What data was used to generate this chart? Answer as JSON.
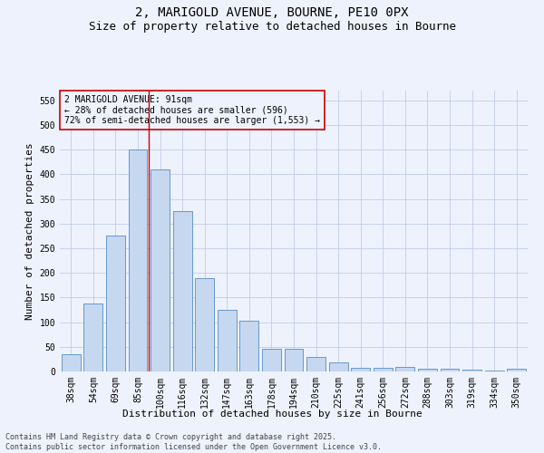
{
  "title_line1": "2, MARIGOLD AVENUE, BOURNE, PE10 0PX",
  "title_line2": "Size of property relative to detached houses in Bourne",
  "xlabel": "Distribution of detached houses by size in Bourne",
  "ylabel": "Number of detached properties",
  "categories": [
    "38sqm",
    "54sqm",
    "69sqm",
    "85sqm",
    "100sqm",
    "116sqm",
    "132sqm",
    "147sqm",
    "163sqm",
    "178sqm",
    "194sqm",
    "210sqm",
    "225sqm",
    "241sqm",
    "256sqm",
    "272sqm",
    "288sqm",
    "303sqm",
    "319sqm",
    "334sqm",
    "350sqm"
  ],
  "values": [
    35,
    137,
    275,
    450,
    410,
    326,
    190,
    125,
    103,
    46,
    46,
    30,
    18,
    8,
    8,
    9,
    5,
    5,
    3,
    2,
    6
  ],
  "bar_color": "#c5d8f0",
  "bar_edge_color": "#6699cc",
  "vline_x": 3.5,
  "vline_color": "#cc0000",
  "annotation_text": "2 MARIGOLD AVENUE: 91sqm\n← 28% of detached houses are smaller (596)\n72% of semi-detached houses are larger (1,553) →",
  "annotation_box_color": "#cc0000",
  "ylim": [
    0,
    570
  ],
  "yticks": [
    0,
    50,
    100,
    150,
    200,
    250,
    300,
    350,
    400,
    450,
    500,
    550
  ],
  "background_color": "#eef2fc",
  "grid_color": "#c0cce8",
  "footer_text": "Contains HM Land Registry data © Crown copyright and database right 2025.\nContains public sector information licensed under the Open Government Licence v3.0.",
  "title_fontsize": 10,
  "subtitle_fontsize": 9,
  "axis_label_fontsize": 8,
  "tick_fontsize": 7,
  "annotation_fontsize": 7,
  "footer_fontsize": 6
}
